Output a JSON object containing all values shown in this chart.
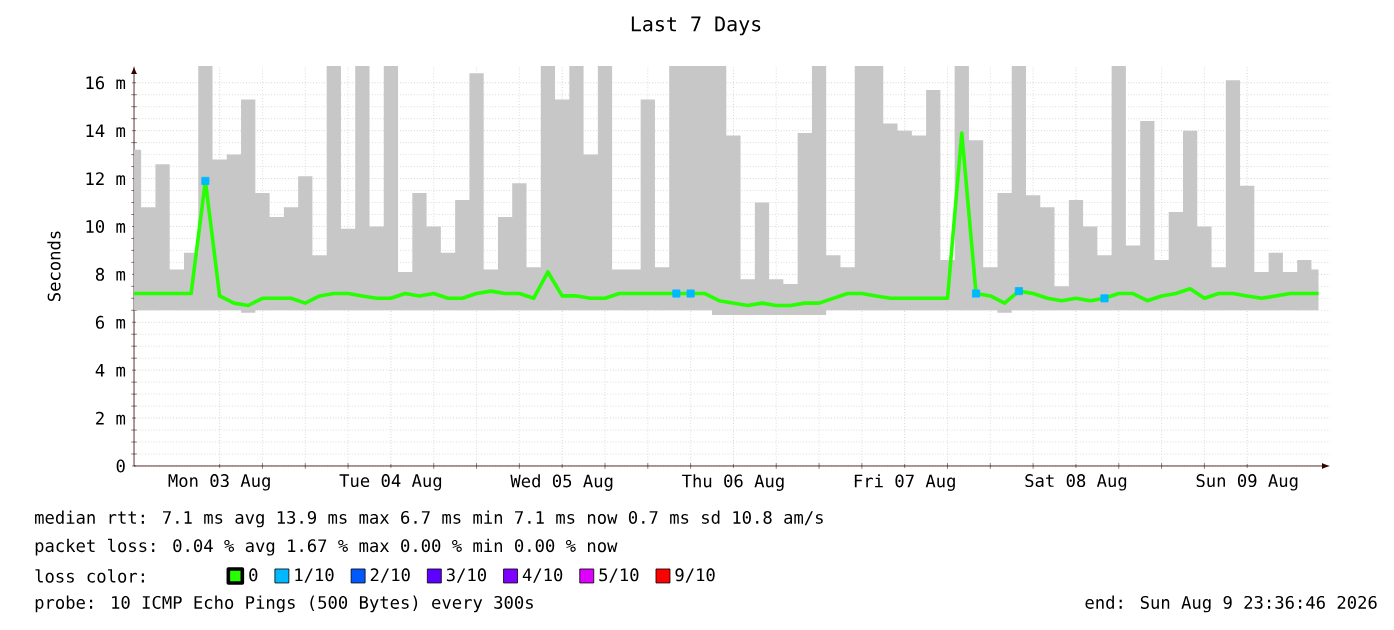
{
  "chart_data": {
    "type": "line",
    "title": "Last 7 Days",
    "ylabel": "Seconds",
    "legend_title": "loss color:",
    "legend": "bottom",
    "grid": true,
    "xlim": [
      "2026-08-03T00:00",
      "2026-08-09T23:36"
    ],
    "xticks": [
      {
        "value": "2026-08-03T12:00",
        "label": "Mon 03 Aug"
      },
      {
        "value": "2026-08-04T12:00",
        "label": "Tue 04 Aug"
      },
      {
        "value": "2026-08-05T12:00",
        "label": "Wed 05 Aug"
      },
      {
        "value": "2026-08-06T12:00",
        "label": "Thu 06 Aug"
      },
      {
        "value": "2026-08-07T12:00",
        "label": "Fri 07 Aug"
      },
      {
        "value": "2026-08-08T12:00",
        "label": "Sat 08 Aug"
      },
      {
        "value": "2026-08-09T12:00",
        "label": "Sun 09 Aug"
      }
    ],
    "ylim": [
      0,
      16.7
    ],
    "yticks": [
      0,
      {
        "value": 2,
        "label": "2 m"
      },
      {
        "value": 4,
        "label": "4 m"
      },
      {
        "value": 6,
        "label": "6 m"
      },
      {
        "value": 8,
        "label": "8 m"
      },
      {
        "value": 10,
        "label": "10 m"
      },
      {
        "value": 12,
        "label": "12 m"
      },
      {
        "value": 14,
        "label": "14 m"
      },
      {
        "value": 16,
        "label": "16 m"
      }
    ],
    "x": [
      "2026-08-03T00:00",
      "2026-08-03T02:00",
      "2026-08-03T04:00",
      "2026-08-03T06:00",
      "2026-08-03T08:00",
      "2026-08-03T10:00",
      "2026-08-03T12:00",
      "2026-08-03T14:00",
      "2026-08-03T16:00",
      "2026-08-03T18:00",
      "2026-08-03T20:00",
      "2026-08-03T22:00",
      "2026-08-04T00:00",
      "2026-08-04T02:00",
      "2026-08-04T04:00",
      "2026-08-04T06:00",
      "2026-08-04T08:00",
      "2026-08-04T10:00",
      "2026-08-04T12:00",
      "2026-08-04T14:00",
      "2026-08-04T16:00",
      "2026-08-04T18:00",
      "2026-08-04T20:00",
      "2026-08-04T22:00",
      "2026-08-05T00:00",
      "2026-08-05T02:00",
      "2026-08-05T04:00",
      "2026-08-05T06:00",
      "2026-08-05T08:00",
      "2026-08-05T10:00",
      "2026-08-05T12:00",
      "2026-08-05T14:00",
      "2026-08-05T16:00",
      "2026-08-05T18:00",
      "2026-08-05T20:00",
      "2026-08-05T22:00",
      "2026-08-06T00:00",
      "2026-08-06T02:00",
      "2026-08-06T04:00",
      "2026-08-06T06:00",
      "2026-08-06T08:00",
      "2026-08-06T10:00",
      "2026-08-06T12:00",
      "2026-08-06T14:00",
      "2026-08-06T16:00",
      "2026-08-06T18:00",
      "2026-08-06T20:00",
      "2026-08-06T22:00",
      "2026-08-07T00:00",
      "2026-08-07T02:00",
      "2026-08-07T04:00",
      "2026-08-07T06:00",
      "2026-08-07T08:00",
      "2026-08-07T10:00",
      "2026-08-07T12:00",
      "2026-08-07T14:00",
      "2026-08-07T16:00",
      "2026-08-07T18:00",
      "2026-08-07T20:00",
      "2026-08-07T22:00",
      "2026-08-08T00:00",
      "2026-08-08T02:00",
      "2026-08-08T04:00",
      "2026-08-08T06:00",
      "2026-08-08T08:00",
      "2026-08-08T10:00",
      "2026-08-08T12:00",
      "2026-08-08T14:00",
      "2026-08-08T16:00",
      "2026-08-08T18:00",
      "2026-08-08T20:00",
      "2026-08-08T22:00",
      "2026-08-09T00:00",
      "2026-08-09T02:00",
      "2026-08-09T04:00",
      "2026-08-09T06:00",
      "2026-08-09T08:00",
      "2026-08-09T10:00",
      "2026-08-09T12:00",
      "2026-08-09T14:00",
      "2026-08-09T16:00",
      "2026-08-09T18:00",
      "2026-08-09T20:00",
      "2026-08-09T22:00"
    ],
    "series": [
      {
        "name": "0",
        "color": "#26ff00",
        "values": [
          7.2,
          7.2,
          7.2,
          7.2,
          7.2,
          11.9,
          7.1,
          6.8,
          6.7,
          7.0,
          7.0,
          7.0,
          6.8,
          7.1,
          7.2,
          7.2,
          7.1,
          7.0,
          7.0,
          7.2,
          7.1,
          7.2,
          7.0,
          7.0,
          7.2,
          7.3,
          7.2,
          7.2,
          7.0,
          8.1,
          7.1,
          7.1,
          7.0,
          7.0,
          7.2,
          7.2,
          7.2,
          7.2,
          7.2,
          7.2,
          7.2,
          6.9,
          6.8,
          6.7,
          6.8,
          6.7,
          6.7,
          6.8,
          6.8,
          7.0,
          7.2,
          7.2,
          7.1,
          7.0,
          7.0,
          7.0,
          7.0,
          7.0,
          13.9,
          7.2,
          7.1,
          6.8,
          7.3,
          7.2,
          7.0,
          6.9,
          7.0,
          6.9,
          7.0,
          7.2,
          7.2,
          6.9,
          7.1,
          7.2,
          7.4,
          7.0,
          7.2,
          7.2,
          7.1,
          7.0,
          7.1,
          7.2,
          7.2,
          7.2
        ],
        "lower": [
          6.5,
          6.5,
          6.5,
          6.5,
          6.5,
          6.5,
          6.5,
          6.5,
          6.4,
          6.5,
          6.5,
          6.5,
          6.5,
          6.5,
          6.5,
          6.5,
          6.5,
          6.5,
          6.5,
          6.5,
          6.5,
          6.5,
          6.5,
          6.5,
          6.5,
          6.5,
          6.5,
          6.5,
          6.5,
          6.5,
          6.5,
          6.5,
          6.5,
          6.5,
          6.5,
          6.5,
          6.5,
          6.5,
          6.5,
          6.5,
          6.5,
          6.3,
          6.3,
          6.3,
          6.3,
          6.3,
          6.3,
          6.3,
          6.3,
          6.5,
          6.5,
          6.5,
          6.5,
          6.5,
          6.5,
          6.5,
          6.5,
          6.5,
          6.5,
          6.5,
          6.5,
          6.4,
          6.5,
          6.5,
          6.5,
          6.5,
          6.5,
          6.5,
          6.5,
          6.5,
          6.5,
          6.5,
          6.5,
          6.5,
          6.5,
          6.5,
          6.5,
          6.5,
          6.5,
          6.5,
          6.5,
          6.5,
          6.5,
          6.5
        ],
        "upper": [
          13.2,
          10.8,
          12.6,
          8.2,
          8.9,
          16.7,
          12.8,
          13.0,
          15.3,
          11.4,
          10.4,
          10.8,
          12.1,
          8.8,
          16.7,
          9.9,
          16.7,
          10.0,
          16.7,
          8.1,
          11.4,
          10.0,
          8.9,
          11.1,
          16.4,
          8.2,
          10.4,
          11.8,
          8.3,
          16.7,
          15.3,
          16.7,
          13.0,
          16.7,
          8.2,
          8.2,
          15.3,
          8.3,
          16.7,
          16.7,
          16.7,
          16.7,
          13.8,
          7.8,
          11.0,
          7.8,
          7.6,
          13.9,
          16.7,
          8.8,
          8.3,
          16.7,
          16.7,
          14.3,
          14.0,
          13.8,
          15.7,
          8.6,
          16.7,
          13.6,
          8.3,
          11.4,
          16.7,
          11.3,
          10.8,
          7.5,
          11.1,
          10.0,
          8.8,
          16.7,
          9.2,
          14.4,
          8.6,
          10.6,
          14.0,
          10.0,
          8.3,
          16.1,
          11.7,
          8.1,
          8.9,
          8.1,
          8.6,
          8.2
        ]
      },
      {
        "name": "1/10",
        "type": "scatter",
        "marker": "square",
        "color": "#00b8ff",
        "values": [
          null,
          null,
          null,
          null,
          null,
          11.9,
          null,
          null,
          null,
          null,
          null,
          null,
          null,
          null,
          null,
          null,
          null,
          null,
          null,
          null,
          null,
          null,
          null,
          null,
          null,
          null,
          null,
          null,
          null,
          null,
          null,
          null,
          null,
          null,
          null,
          null,
          null,
          null,
          7.2,
          7.2,
          null,
          null,
          null,
          null,
          null,
          null,
          null,
          null,
          null,
          null,
          null,
          null,
          null,
          null,
          null,
          null,
          null,
          null,
          null,
          7.2,
          null,
          null,
          7.3,
          null,
          null,
          null,
          null,
          null,
          7.0,
          null,
          null,
          null,
          null,
          null,
          null,
          null,
          null,
          null,
          null,
          null,
          null,
          null,
          null,
          null
        ]
      },
      {
        "name": "2/10",
        "type": "scatter",
        "marker": "square",
        "color": "#0059ff",
        "values": [
          null,
          null,
          null,
          null,
          null,
          null,
          null,
          null,
          null,
          null,
          null,
          null,
          null,
          null,
          null,
          null,
          null,
          null,
          null,
          null,
          null,
          null,
          null,
          null,
          null,
          null,
          null,
          null,
          null,
          null,
          null,
          null,
          null,
          null,
          null,
          null,
          null,
          null,
          null,
          null,
          null,
          null,
          null,
          null,
          null,
          null,
          null,
          null,
          null,
          null,
          null,
          null,
          null,
          null,
          null,
          null,
          null,
          null,
          null,
          null,
          null,
          null,
          null,
          null,
          null,
          null,
          null,
          null,
          null,
          null,
          null,
          null,
          null,
          null,
          null,
          null,
          null,
          null,
          null,
          null,
          null,
          null,
          null,
          null
        ]
      },
      {
        "name": "3/10",
        "type": "scatter",
        "marker": "square",
        "color": "#5e00ff",
        "values": [
          null,
          null,
          null,
          null,
          null,
          null,
          null,
          null,
          null,
          null,
          null,
          null,
          null,
          null,
          null,
          null,
          null,
          null,
          null,
          null,
          null,
          null,
          null,
          null,
          null,
          null,
          null,
          null,
          null,
          null,
          null,
          null,
          null,
          null,
          null,
          null,
          null,
          null,
          null,
          null,
          null,
          null,
          null,
          null,
          null,
          null,
          null,
          null,
          null,
          null,
          null,
          null,
          null,
          null,
          null,
          null,
          null,
          null,
          null,
          null,
          null,
          null,
          null,
          null,
          null,
          null,
          null,
          null,
          null,
          null,
          null,
          null,
          null,
          null,
          null,
          null,
          null,
          null,
          null,
          null,
          null,
          null,
          null,
          null
        ]
      },
      {
        "name": "4/10",
        "type": "scatter",
        "marker": "square",
        "color": "#7e00ff",
        "values": [
          null,
          null,
          null,
          null,
          null,
          null,
          null,
          null,
          null,
          null,
          null,
          null,
          null,
          null,
          null,
          null,
          null,
          null,
          null,
          null,
          null,
          null,
          null,
          null,
          null,
          null,
          null,
          null,
          null,
          null,
          null,
          null,
          null,
          null,
          null,
          null,
          null,
          null,
          null,
          null,
          null,
          null,
          null,
          null,
          null,
          null,
          null,
          null,
          null,
          null,
          null,
          null,
          null,
          null,
          null,
          null,
          null,
          null,
          null,
          null,
          null,
          null,
          null,
          null,
          null,
          null,
          null,
          null,
          null,
          null,
          null,
          null,
          null,
          null,
          null,
          null,
          null,
          null,
          null,
          null,
          null,
          null,
          null,
          null
        ]
      },
      {
        "name": "5/10",
        "type": "scatter",
        "marker": "square",
        "color": "#dd00ff",
        "values": [
          null,
          null,
          null,
          null,
          null,
          null,
          null,
          null,
          null,
          null,
          null,
          null,
          null,
          null,
          null,
          null,
          null,
          null,
          null,
          null,
          null,
          null,
          null,
          null,
          null,
          null,
          null,
          null,
          null,
          null,
          null,
          null,
          null,
          null,
          null,
          null,
          null,
          null,
          null,
          null,
          null,
          null,
          null,
          null,
          null,
          null,
          null,
          null,
          null,
          null,
          null,
          null,
          null,
          null,
          null,
          null,
          null,
          null,
          null,
          null,
          null,
          null,
          null,
          null,
          null,
          null,
          null,
          null,
          null,
          null,
          null,
          null,
          null,
          null,
          null,
          null,
          null,
          null,
          null,
          null,
          null,
          null,
          null,
          null
        ]
      },
      {
        "name": "9/10",
        "type": "scatter",
        "marker": "square",
        "color": "#ff0000",
        "values": [
          null,
          null,
          null,
          null,
          null,
          null,
          null,
          null,
          null,
          null,
          null,
          null,
          null,
          null,
          null,
          null,
          null,
          null,
          null,
          null,
          null,
          null,
          null,
          null,
          null,
          null,
          null,
          null,
          null,
          null,
          null,
          null,
          null,
          null,
          null,
          null,
          null,
          null,
          null,
          null,
          null,
          null,
          null,
          null,
          null,
          null,
          null,
          null,
          null,
          null,
          null,
          null,
          null,
          null,
          null,
          null,
          null,
          null,
          null,
          null,
          null,
          null,
          null,
          null,
          null,
          null,
          null,
          null,
          null,
          null,
          null,
          null,
          null,
          null,
          null,
          null,
          null,
          null,
          null,
          null,
          null,
          null,
          null,
          null
        ]
      }
    ],
    "annotations": [
      "median rtt:  7.1 ms avg  13.9 ms max  6.7 ms min  7.1 ms now  0.7 ms sd  10.8  am/s",
      "packet loss: 0.04 % avg  1.67 % max  0.00 % min  0.00 % now",
      "probe:  10 ICMP Echo Pings (500 Bytes) every 300s",
      "end: Sun Aug  9 23:36:46 2026"
    ]
  }
}
